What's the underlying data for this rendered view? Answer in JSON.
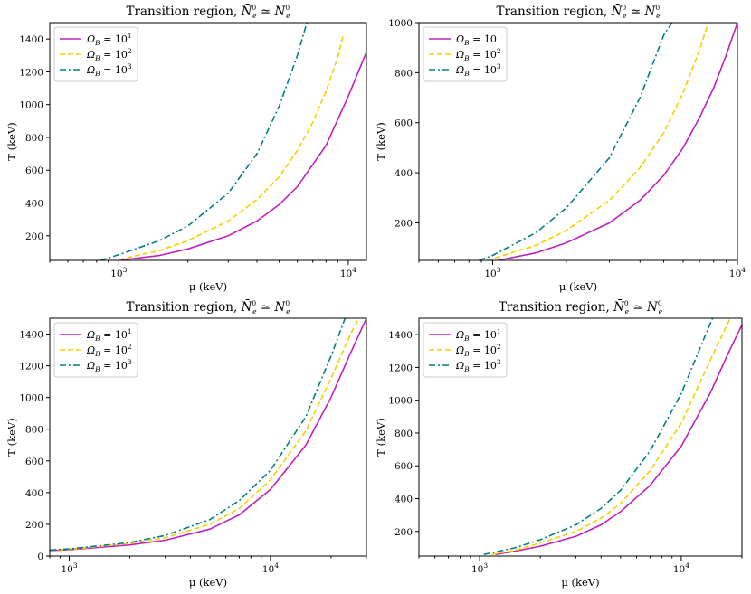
{
  "colors": {
    "omega1": "#c020c0",
    "omega2": "#f5d000",
    "omega3": "#008080"
  },
  "chart_data": [
    {
      "type": "line",
      "title": "Transition region, N̄e0 ≃ Ne0",
      "title_parts": {
        "prefix": "Transition region, ",
        "lhs": "N̄",
        "lhs_sub": "e",
        "lhs_sup": "0",
        "rel": " ≃ ",
        "rhs": "N",
        "rhs_sub": "e",
        "rhs_sup": "0"
      },
      "xlabel": "μ (keV)",
      "ylabel": "T (keV)",
      "xscale": "log",
      "xlim": [
        500,
        12000
      ],
      "ylim": [
        50,
        1500
      ],
      "xticks": [
        {
          "value": 1000,
          "base": "10",
          "exp": "3"
        },
        {
          "value": 10000,
          "base": "10",
          "exp": "4"
        }
      ],
      "yticks": [
        200,
        400,
        600,
        800,
        1000,
        1200,
        1400
      ],
      "legend": {
        "placement": "upper-left",
        "entries": [
          {
            "series": 0,
            "label": "ΩB = 10^1",
            "lhs": "Ω",
            "lhs_sub": "B",
            "rhs": " = 10",
            "sup": "1"
          },
          {
            "series": 1,
            "label": "ΩB = 10^2",
            "lhs": "Ω",
            "lhs_sub": "B",
            "rhs": " = 10",
            "sup": "2"
          },
          {
            "series": 2,
            "label": "ΩB = 10^3",
            "lhs": "Ω",
            "lhs_sub": "B",
            "rhs": " = 10",
            "sup": "3"
          }
        ]
      },
      "series": [
        {
          "name": "ΩB = 10^1",
          "style": "solid",
          "color": "#c020c0",
          "x": [
            1000,
            1500,
            2000,
            3000,
            4000,
            5000,
            6000,
            8000,
            10000,
            12000
          ],
          "y": [
            50,
            80,
            120,
            200,
            290,
            390,
            500,
            750,
            1050,
            1320
          ]
        },
        {
          "name": "ΩB = 10^2",
          "style": "dashed",
          "color": "#f5d000",
          "x": [
            1000,
            1500,
            2000,
            3000,
            4000,
            5000,
            6000,
            7000,
            8000,
            9000,
            9500
          ],
          "y": [
            55,
            110,
            170,
            290,
            420,
            560,
            720,
            890,
            1080,
            1290,
            1420
          ]
        },
        {
          "name": "ΩB = 10^3",
          "style": "dashdot",
          "color": "#008080",
          "x": [
            830,
            1000,
            1500,
            2000,
            3000,
            4000,
            5000,
            6000,
            6600
          ],
          "y": [
            50,
            85,
            170,
            260,
            460,
            700,
            990,
            1300,
            1500
          ]
        }
      ]
    },
    {
      "type": "line",
      "title": "Transition region, N̄e0 ≃ Ne0",
      "title_parts": {
        "prefix": "Transition region, ",
        "lhs": "N̄",
        "lhs_sub": "e",
        "lhs_sup": "0",
        "rel": " ≃ ",
        "rhs": "N",
        "rhs_sub": "e",
        "rhs_sup": "0"
      },
      "xlabel": "μ (keV)",
      "ylabel": "T (keV)",
      "xscale": "log",
      "xlim": [
        500,
        10000
      ],
      "ylim": [
        50,
        1000
      ],
      "xticks": [
        {
          "value": 1000,
          "base": "10",
          "exp": "3"
        },
        {
          "value": 10000,
          "base": "10",
          "exp": "4"
        }
      ],
      "yticks": [
        200,
        400,
        600,
        800,
        1000
      ],
      "legend": {
        "placement": "upper-left",
        "entries": [
          {
            "series": 0,
            "label": "ΩB = 10",
            "lhs": "Ω",
            "lhs_sub": "B",
            "rhs": " = 10",
            "sup": ""
          },
          {
            "series": 1,
            "label": "ΩB = 10^2",
            "lhs": "Ω",
            "lhs_sub": "B",
            "rhs": " = 10",
            "sup": "2"
          },
          {
            "series": 2,
            "label": "ΩB = 10^3",
            "lhs": "Ω",
            "lhs_sub": "B",
            "rhs": " = 10",
            "sup": "3"
          }
        ]
      },
      "series": [
        {
          "name": "ΩB = 10",
          "style": "solid",
          "color": "#c020c0",
          "x": [
            1050,
            1500,
            2000,
            3000,
            4000,
            5000,
            6000,
            7000,
            8000,
            9000,
            10000
          ],
          "y": [
            50,
            80,
            120,
            200,
            290,
            390,
            500,
            620,
            740,
            870,
            1000
          ]
        },
        {
          "name": "ΩB = 10^2",
          "style": "dashed",
          "color": "#f5d000",
          "x": [
            950,
            1500,
            2000,
            3000,
            4000,
            5000,
            6000,
            7000,
            7600
          ],
          "y": [
            50,
            110,
            170,
            290,
            420,
            560,
            720,
            890,
            1000
          ]
        },
        {
          "name": "ΩB = 10^3",
          "style": "dashdot",
          "color": "#008080",
          "x": [
            880,
            1000,
            1500,
            2000,
            3000,
            4000,
            5000,
            5400
          ],
          "y": [
            50,
            70,
            160,
            260,
            460,
            700,
            950,
            1000
          ]
        }
      ]
    },
    {
      "type": "line",
      "title": "Transition region, N̄e0 ≃ Ne0",
      "title_parts": {
        "prefix": "Transition region, ",
        "lhs": "N̄",
        "lhs_sub": "e",
        "lhs_sup": "0",
        "rel": " ≃ ",
        "rhs": "N",
        "rhs_sub": "e",
        "rhs_sup": "0"
      },
      "xlabel": "μ (keV)",
      "ylabel": "T (keV)",
      "xscale": "log",
      "xlim": [
        800,
        30000
      ],
      "ylim": [
        0,
        1500
      ],
      "xticks": [
        {
          "value": 1000,
          "base": "10",
          "exp": "3"
        },
        {
          "value": 10000,
          "base": "10",
          "exp": "4"
        }
      ],
      "yticks": [
        0,
        200,
        400,
        600,
        800,
        1000,
        1200,
        1400
      ],
      "legend": {
        "placement": "upper-left",
        "entries": [
          {
            "series": 0,
            "label": "ΩB = 10^1",
            "lhs": "Ω",
            "lhs_sub": "B",
            "rhs": " = 10",
            "sup": "1"
          },
          {
            "series": 1,
            "label": "ΩB = 10^2",
            "lhs": "Ω",
            "lhs_sub": "B",
            "rhs": " = 10",
            "sup": "2"
          },
          {
            "series": 2,
            "label": "ΩB = 10^3",
            "lhs": "Ω",
            "lhs_sub": "B",
            "rhs": " = 10",
            "sup": "3"
          }
        ]
      },
      "series": [
        {
          "name": "ΩB = 10^1",
          "style": "solid",
          "color": "#c020c0",
          "x": [
            800,
            1000,
            2000,
            3000,
            5000,
            7000,
            10000,
            15000,
            20000,
            25000,
            30000
          ],
          "y": [
            35,
            40,
            70,
            100,
            170,
            260,
            420,
            700,
            1000,
            1280,
            1500
          ]
        },
        {
          "name": "ΩB = 10^2",
          "style": "dashed",
          "color": "#f5d000",
          "x": [
            800,
            1000,
            2000,
            3000,
            5000,
            7000,
            10000,
            15000,
            20000,
            25000,
            27500
          ],
          "y": [
            37,
            42,
            80,
            115,
            200,
            300,
            480,
            790,
            1120,
            1400,
            1500
          ]
        },
        {
          "name": "ΩB = 10^3",
          "style": "dashdot",
          "color": "#008080",
          "x": [
            800,
            1000,
            2000,
            3000,
            5000,
            7000,
            10000,
            15000,
            20000,
            23500
          ],
          "y": [
            38,
            45,
            85,
            130,
            230,
            350,
            540,
            880,
            1260,
            1500
          ]
        }
      ]
    },
    {
      "type": "line",
      "title": "Transition region, N̄e0 ≃ Ne0",
      "title_parts": {
        "prefix": "Transition region, ",
        "lhs": "N̄",
        "lhs_sub": "e",
        "lhs_sup": "0",
        "rel": " ≃ ",
        "rhs": "N",
        "rhs_sub": "e",
        "rhs_sup": "0"
      },
      "xlabel": "μ (keV)",
      "ylabel": "T (keV)",
      "xscale": "log",
      "xlim": [
        500,
        20000
      ],
      "ylim": [
        50,
        1500
      ],
      "xticks": [
        {
          "value": 1000,
          "base": "10",
          "exp": "3"
        },
        {
          "value": 10000,
          "base": "10",
          "exp": "4"
        }
      ],
      "yticks": [
        200,
        400,
        600,
        800,
        1000,
        1200,
        1400
      ],
      "legend": {
        "placement": "upper-left",
        "entries": [
          {
            "series": 0,
            "label": "ΩB = 10^1",
            "lhs": "Ω",
            "lhs_sub": "B",
            "rhs": " = 10",
            "sup": "1"
          },
          {
            "series": 1,
            "label": "ΩB = 10^2",
            "lhs": "Ω",
            "lhs_sub": "B",
            "rhs": " = 10",
            "sup": "2"
          },
          {
            "series": 2,
            "label": "ΩB = 10^3",
            "lhs": "Ω",
            "lhs_sub": "B",
            "rhs": " = 10",
            "sup": "3"
          }
        ]
      },
      "series": [
        {
          "name": "ΩB = 10^1",
          "style": "solid",
          "color": "#c020c0",
          "x": [
            1200,
            1500,
            2000,
            3000,
            4000,
            5000,
            7000,
            10000,
            14000,
            17000,
            20000
          ],
          "y": [
            60,
            80,
            110,
            170,
            240,
            320,
            480,
            720,
            1050,
            1280,
            1460
          ]
        },
        {
          "name": "ΩB = 10^2",
          "style": "dashed",
          "color": "#f5d000",
          "x": [
            1150,
            1500,
            2000,
            3000,
            4000,
            5000,
            7000,
            10000,
            14000,
            17500
          ],
          "y": [
            60,
            85,
            130,
            200,
            280,
            370,
            570,
            860,
            1250,
            1500
          ]
        },
        {
          "name": "ΩB = 10^3",
          "style": "dashdot",
          "color": "#008080",
          "x": [
            1050,
            1500,
            2000,
            3000,
            4000,
            5000,
            7000,
            10000,
            13000,
            14300
          ],
          "y": [
            60,
            100,
            150,
            240,
            340,
            450,
            690,
            1040,
            1380,
            1500
          ]
        }
      ]
    }
  ]
}
